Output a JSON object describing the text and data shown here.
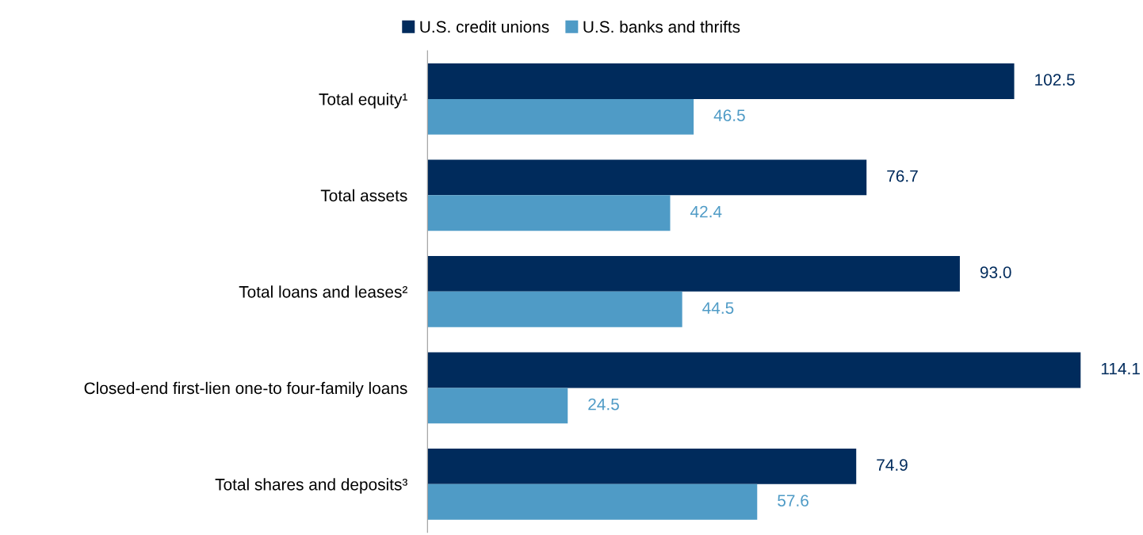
{
  "chart_data": {
    "type": "bar",
    "orientation": "horizontal",
    "categories": [
      "Total equity¹",
      "Total assets",
      "Total loans and leases²",
      "Closed-end first-lien one-to four-family loans",
      "Total shares and deposits³"
    ],
    "series": [
      {
        "name": "U.S. credit unions",
        "color": "#002b5c",
        "values": [
          102.5,
          76.7,
          93.0,
          114.1,
          74.9
        ],
        "value_labels": [
          "102.5",
          "76.7",
          "93.0",
          "114.1",
          "74.9"
        ]
      },
      {
        "name": "U.S. banks and thrifts",
        "color": "#4f9bc6",
        "values": [
          46.5,
          42.4,
          44.5,
          24.5,
          57.6
        ],
        "value_labels": [
          "46.5",
          "42.4",
          "44.5",
          "24.5",
          "57.6"
        ]
      }
    ],
    "tick_labels": "y",
    "legend": "top"
  }
}
